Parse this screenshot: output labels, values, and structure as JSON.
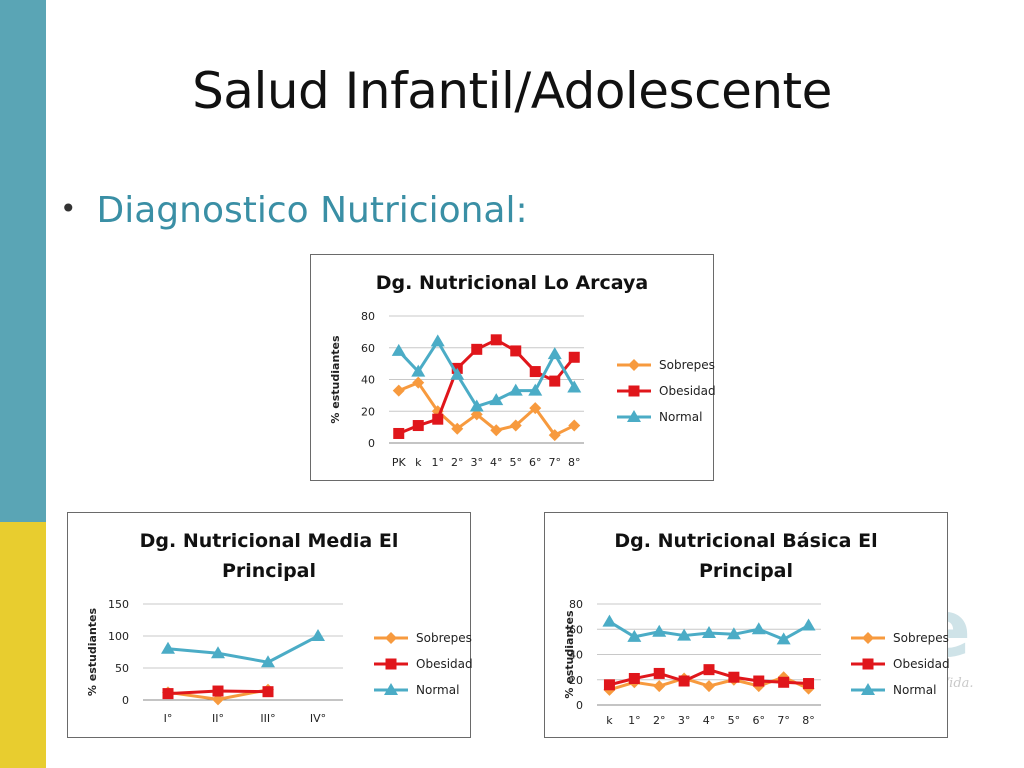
{
  "slide": {
    "title": "Salud Infantil/Adolescente",
    "bullet": "Diagnostico Nutricional:",
    "bullet_symbol": "•",
    "watermark_letter": "e",
    "watermark_text": "Vida."
  },
  "colors": {
    "accent_teal": "#5aa5b5",
    "accent_yellow": "#e8cd2f",
    "sobrepeso": "#f79a3e",
    "obesidad": "#e0161b",
    "normal": "#4bacc6"
  },
  "chart_data": [
    {
      "id": "arcaya",
      "type": "line",
      "title": "Dg. Nutricional Lo Arcaya",
      "ylabel": "% estudiantes",
      "ylim": [
        0,
        80
      ],
      "yticks": [
        0,
        20,
        40,
        60,
        80
      ],
      "categories": [
        "PK",
        "k",
        "1°",
        "2°",
        "3°",
        "4°",
        "5°",
        "6°",
        "7°",
        "8°"
      ],
      "legend_position": "right",
      "grid": true,
      "series": [
        {
          "name": "Sobrepeso",
          "marker": "diamond",
          "values": [
            33,
            38,
            20,
            9,
            18,
            8,
            11,
            22,
            5,
            11
          ]
        },
        {
          "name": "Obesidad",
          "marker": "square",
          "values": [
            6,
            11,
            15,
            47,
            59,
            65,
            58,
            45,
            39,
            54
          ]
        },
        {
          "name": "Normal",
          "marker": "triangle",
          "values": [
            58,
            45,
            64,
            43,
            23,
            27,
            33,
            33,
            56,
            35
          ]
        }
      ]
    },
    {
      "id": "media",
      "type": "line",
      "title": "Dg. Nutricional Media El Principal",
      "ylabel": "% estudiantes",
      "ylim": [
        0,
        150
      ],
      "yticks": [
        0,
        50,
        100,
        150
      ],
      "categories": [
        "I°",
        "II°",
        "III°",
        "IV°"
      ],
      "legend_position": "right",
      "grid": true,
      "series": [
        {
          "name": "Sobrepeso",
          "marker": "diamond",
          "values": [
            12,
            1,
            16,
            null
          ]
        },
        {
          "name": "Obesidad",
          "marker": "square",
          "values": [
            10,
            14,
            13,
            null
          ]
        },
        {
          "name": "Normal",
          "marker": "triangle",
          "values": [
            80,
            73,
            59,
            100
          ]
        }
      ]
    },
    {
      "id": "basica",
      "type": "line",
      "title": "Dg. Nutricional Básica El Principal",
      "ylabel": "% estudiantes",
      "ylim": [
        0,
        80
      ],
      "yticks": [
        0,
        20,
        40,
        60,
        80
      ],
      "categories": [
        "k",
        "1°",
        "2°",
        "3°",
        "4°",
        "5°",
        "6°",
        "7°",
        "8°"
      ],
      "legend_position": "right",
      "grid": true,
      "series": [
        {
          "name": "Sobrepeso",
          "marker": "diamond",
          "values": [
            12,
            18,
            15,
            21,
            15,
            20,
            15,
            22,
            13
          ]
        },
        {
          "name": "Obesidad",
          "marker": "square",
          "values": [
            16,
            21,
            25,
            19,
            28,
            22,
            19,
            18,
            17
          ]
        },
        {
          "name": "Normal",
          "marker": "triangle",
          "values": [
            66,
            54,
            58,
            55,
            57,
            56,
            60,
            52,
            63
          ]
        }
      ]
    }
  ]
}
